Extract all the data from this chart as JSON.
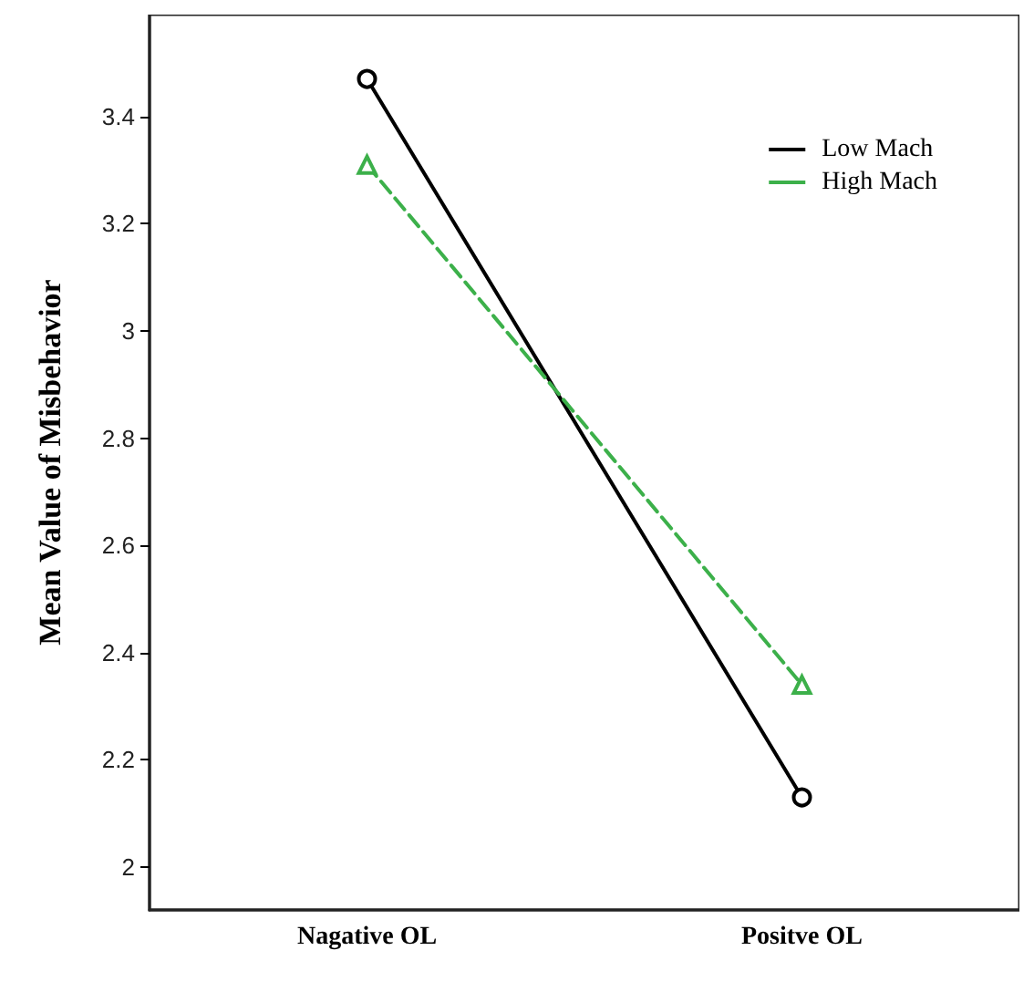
{
  "chart_data": {
    "type": "line",
    "ylabel": "Mean Value of Misbehavior",
    "categories": [
      "Nagative OL",
      "Positve OL"
    ],
    "series": [
      {
        "name": "Low Mach",
        "color": "#000000",
        "values": [
          3.47,
          2.13
        ],
        "marker": "circle",
        "line_style": "solid"
      },
      {
        "name": "High Mach",
        "color": "#3cb04a",
        "values": [
          3.31,
          2.34
        ],
        "marker": "triangle",
        "line_style": "dashed"
      }
    ],
    "ylim": [
      1.92,
      3.59
    ],
    "yticks": [
      2,
      2.2,
      2.4,
      2.6,
      2.8,
      3,
      3.2,
      3.4
    ],
    "grid": false,
    "legend": "top right"
  }
}
